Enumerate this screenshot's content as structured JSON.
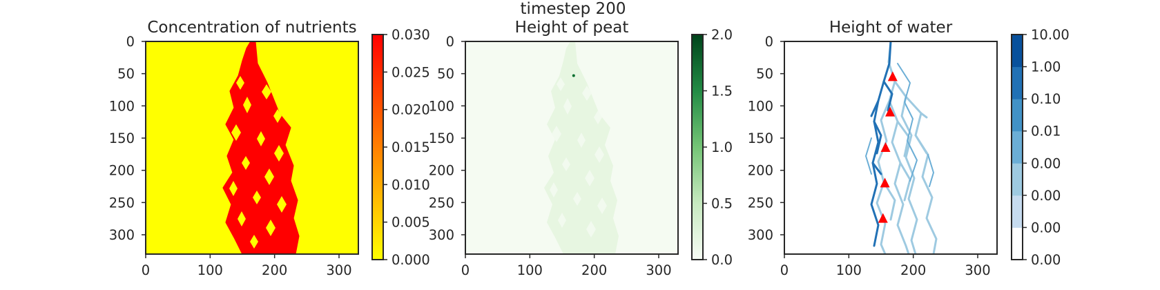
{
  "figure": {
    "suptitle": "timestep 200"
  },
  "chart_data": [
    {
      "type": "heatmap",
      "title": "Concentration of nutrients",
      "cmap": "autumn_r",
      "grid": false,
      "xlim": [
        0,
        330
      ],
      "ylim": [
        330,
        0
      ],
      "xticks": [
        "0",
        "100",
        "200",
        "300"
      ],
      "yticks": [
        "0",
        "50",
        "100",
        "150",
        "200",
        "250",
        "300"
      ],
      "colorbar": {
        "range": [
          0.0,
          0.03
        ],
        "ticks": [
          "0.000",
          "0.005",
          "0.010",
          "0.015",
          "0.020",
          "0.025",
          "0.030"
        ],
        "colors": [
          "#ffff00",
          "#ff0000"
        ]
      },
      "background_value": 0.0,
      "channel_value": 0.03,
      "channel_color": "#ff0000",
      "background_color": "#ffff00"
    },
    {
      "type": "heatmap",
      "title": "Height of peat",
      "cmap": "Greens",
      "grid": false,
      "xlim": [
        0,
        330
      ],
      "ylim": [
        330,
        0
      ],
      "xticks": [
        "0",
        "100",
        "200",
        "300"
      ],
      "yticks": [
        "0",
        "50",
        "100",
        "150",
        "200",
        "250",
        "300"
      ],
      "colorbar": {
        "range": [
          0.0,
          2.0
        ],
        "ticks": [
          "0.0",
          "0.5",
          "1.0",
          "1.5",
          "2.0"
        ],
        "colors": [
          "#f7fcf5",
          "#00441b"
        ]
      },
      "background_color": "#f5fbf2",
      "channel_color": "#e4f4de",
      "peak_point": {
        "x": 168,
        "y": 53,
        "value": 2.0
      }
    },
    {
      "type": "heatmap",
      "title": "Height of water",
      "cmap": "Blues (log levels)",
      "grid": false,
      "xlim": [
        0,
        330
      ],
      "ylim": [
        330,
        0
      ],
      "xticks": [
        "0",
        "100",
        "200",
        "300"
      ],
      "yticks": [
        "0",
        "50",
        "100",
        "150",
        "200",
        "250",
        "300"
      ],
      "colorbar": {
        "ticks": [
          "0.00",
          "0.00",
          "0.00",
          "0.00",
          "0.01",
          "0.10",
          "1.00",
          "10.00"
        ],
        "level_colors": [
          "#ffffff",
          "#c6dbef",
          "#9ecae1",
          "#6baed6",
          "#4292c6",
          "#2171b5",
          "#08519c",
          "#08306b"
        ]
      },
      "markers": {
        "color": "#ff0000",
        "shape": "triangle",
        "points": [
          {
            "x": 168,
            "y": 55
          },
          {
            "x": 164,
            "y": 110
          },
          {
            "x": 157,
            "y": 165
          },
          {
            "x": 156,
            "y": 220
          },
          {
            "x": 153,
            "y": 275
          }
        ]
      }
    }
  ]
}
